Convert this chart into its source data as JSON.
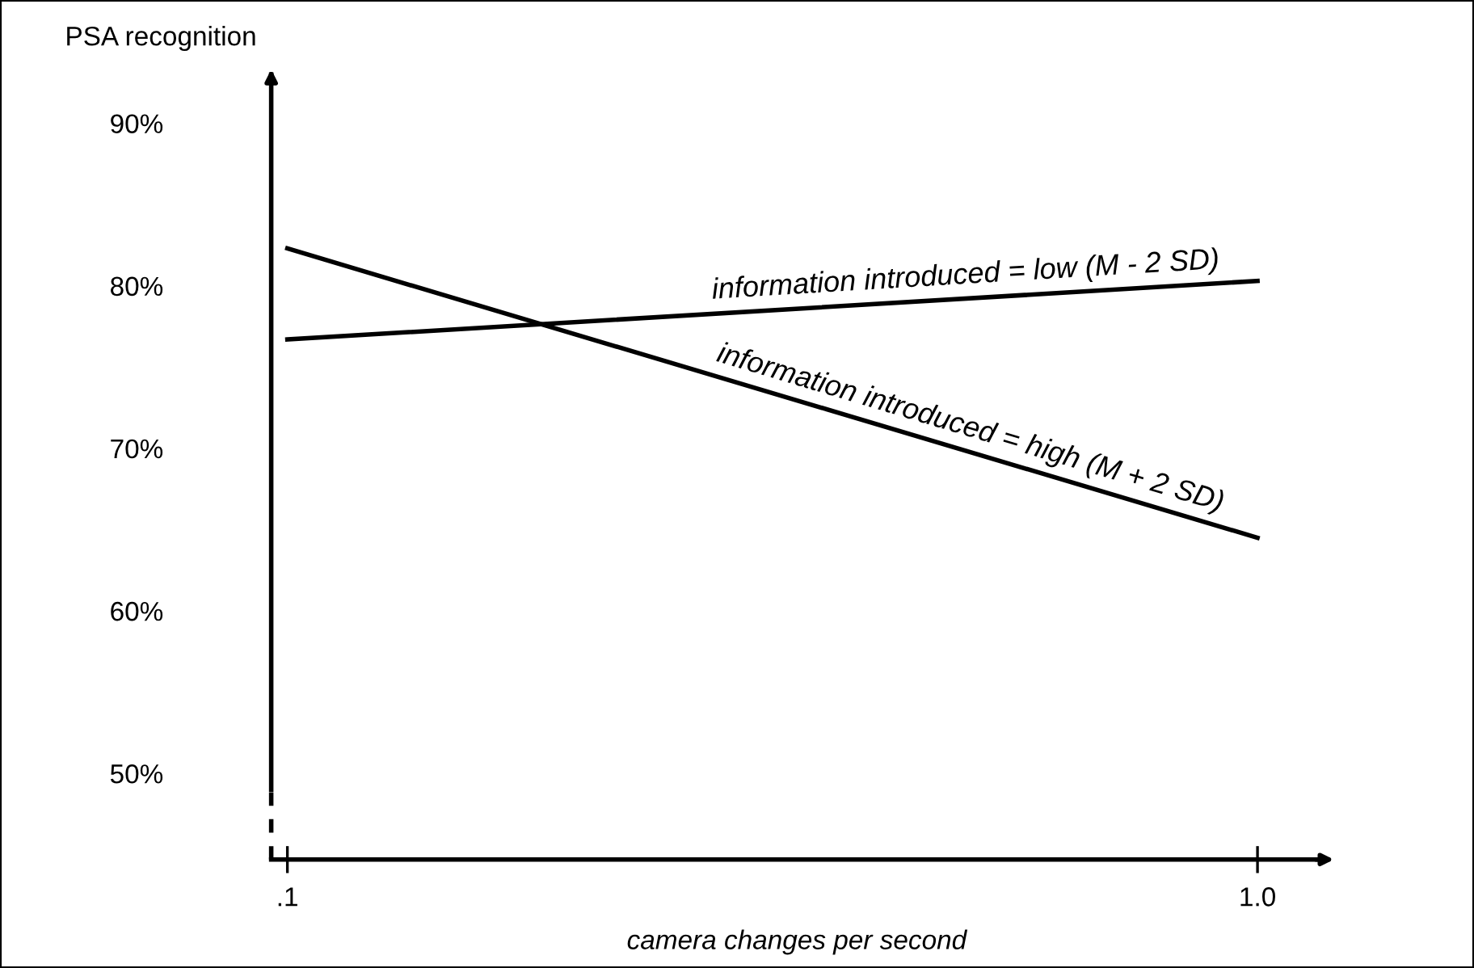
{
  "chart_data": {
    "type": "line",
    "xlabel": "camera changes per second",
    "ylabel": "PSA recognition",
    "x": [
      0.1,
      1.0
    ],
    "series": [
      {
        "name": "information introduced = low (M - 2 SD)",
        "color": "#000000",
        "values": [
          76.7,
          80.3
        ]
      },
      {
        "name": "information introduced = high (M + 2 SD)",
        "color": "#000000",
        "values": [
          82.3,
          64.5
        ]
      }
    ],
    "xlim": [
      0.085,
      1.06
    ],
    "ylim": [
      44.7,
      93
    ],
    "xticks": [
      {
        "value": 0.1,
        "label": ".1"
      },
      {
        "value": 1.0,
        "label": "1.0"
      }
    ],
    "yticks": [
      {
        "value": 50,
        "label": "50%"
      },
      {
        "value": 60,
        "label": "60%"
      },
      {
        "value": 70,
        "label": "70%"
      },
      {
        "value": 80,
        "label": "80%"
      },
      {
        "value": 90,
        "label": "90%"
      }
    ],
    "grid": false,
    "legend": false,
    "marker": "none",
    "line_style": "solid"
  }
}
